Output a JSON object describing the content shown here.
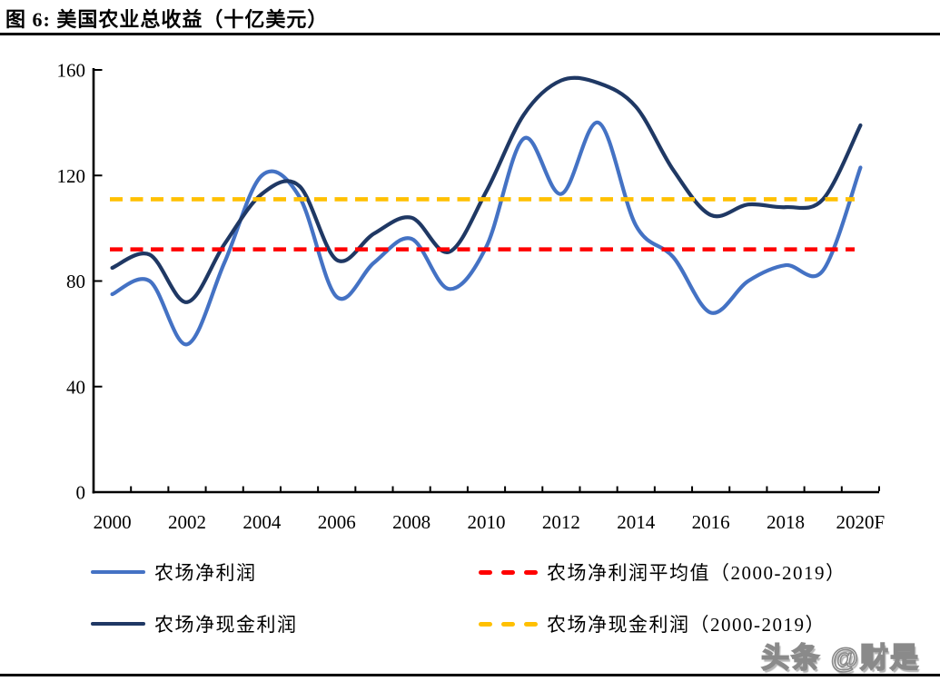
{
  "header": {
    "title": "图 6: 美国农业总收益（十亿美元）"
  },
  "watermark": {
    "text": "头条 @财是"
  },
  "chart_data": {
    "type": "line",
    "title": "美国农业总收益（十亿美元）",
    "xlabel": "",
    "ylabel": "",
    "ylim": [
      0,
      160
    ],
    "y_ticks": [
      0,
      40,
      80,
      120,
      160
    ],
    "grid": false,
    "legend_position": "bottom",
    "x_categories": [
      "2000",
      "2001",
      "2002",
      "2003",
      "2004",
      "2005",
      "2006",
      "2007",
      "2008",
      "2009",
      "2010",
      "2011",
      "2012",
      "2013",
      "2014",
      "2015",
      "2016",
      "2017",
      "2018",
      "2019",
      "2020F"
    ],
    "x_label_every": 2,
    "series": [
      {
        "name": "农场净利润",
        "type": "line",
        "style": "solid",
        "color": "#4472C4",
        "values": [
          75,
          80,
          56,
          87,
          120,
          112,
          74,
          87,
          96,
          77,
          93,
          134,
          113,
          140,
          101,
          89,
          68,
          80,
          86,
          84,
          123
        ]
      },
      {
        "name": "农场净现金利润",
        "type": "line",
        "style": "solid",
        "color": "#1F3864",
        "values": [
          85,
          90,
          72,
          94,
          113,
          116,
          88,
          98,
          104,
          91,
          114,
          143,
          156,
          155,
          146,
          122,
          105,
          109,
          108,
          111,
          139
        ]
      },
      {
        "name": "农场净利润平均值（2000-2019）",
        "type": "constant-line",
        "style": "dashed",
        "color": "#FF0000",
        "value": 92
      },
      {
        "name": "农场净现金利润（2000-2019）",
        "type": "constant-line",
        "style": "dashed",
        "color": "#FFC000",
        "value": 111
      }
    ]
  }
}
